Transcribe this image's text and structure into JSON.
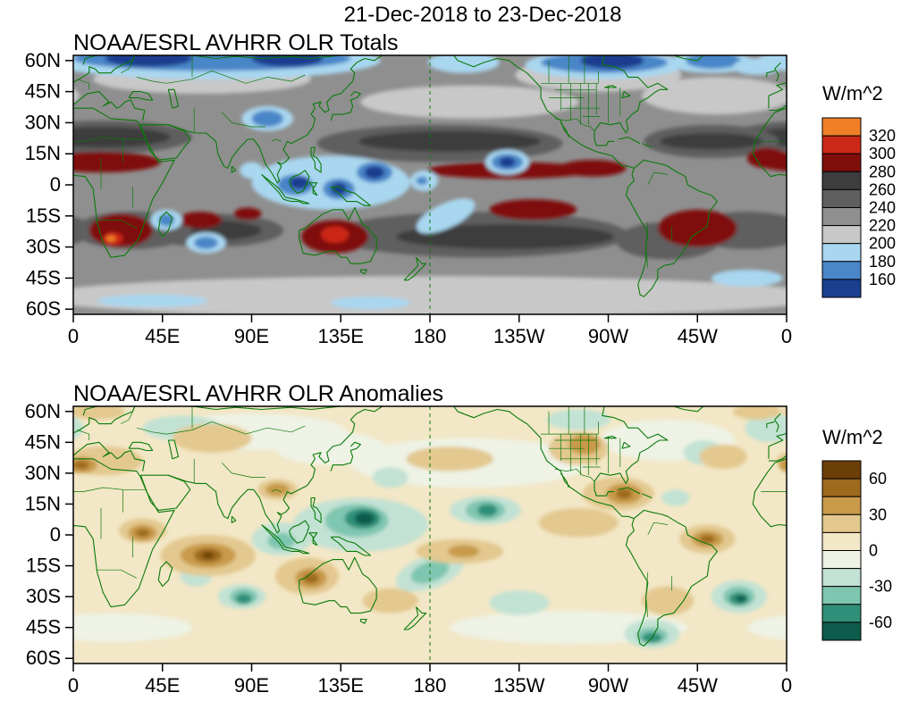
{
  "page_title": "21-Dec-2018 to 23-Dec-2018",
  "colors": {
    "coastline": "#0a7a0a",
    "frame": "#000000",
    "background": "#ffffff"
  },
  "panels": [
    {
      "title": "NOAA/ESRL AVHRR OLR Totals",
      "y_tick_labels": [
        "60N",
        "45N",
        "30N",
        "15N",
        "0",
        "15S",
        "30S",
        "45S",
        "60S"
      ],
      "x_tick_labels": [
        "0",
        "45E",
        "90E",
        "135E",
        "180",
        "135W",
        "90W",
        "45W",
        "0"
      ],
      "colorbar": {
        "units_label": "W/m^2",
        "tick_labels": [
          "320",
          "300",
          "280",
          "260",
          "240",
          "220",
          "200",
          "180",
          "160"
        ],
        "colors": [
          "#f07f28",
          "#cc2818",
          "#800f0c",
          "#3d3d3d",
          "#5e5e5e",
          "#8f8f8f",
          "#c8c8c8",
          "#a9d7f0",
          "#4a86c8",
          "#1c3e8f"
        ],
        "label_every_n_boundaries": 1
      }
    },
    {
      "title": "NOAA/ESRL AVHRR OLR Anomalies",
      "y_tick_labels": [
        "60N",
        "45N",
        "30N",
        "15N",
        "0",
        "15S",
        "30S",
        "45S",
        "60S"
      ],
      "x_tick_labels": [
        "0",
        "45E",
        "90E",
        "135E",
        "180",
        "135W",
        "90W",
        "45W",
        "0"
      ],
      "colorbar": {
        "units_label": "W/m^2",
        "tick_labels": [
          "60",
          "30",
          "0",
          "-30",
          "-60"
        ],
        "colors": [
          "#6b4008",
          "#9e6a1e",
          "#c89a4a",
          "#e3c88f",
          "#f2e7c6",
          "#eef3e6",
          "#c2e2d4",
          "#7fc6b1",
          "#2f8f78",
          "#0e5c4c"
        ],
        "label_every_n_boundaries": 2
      }
    }
  ],
  "chart_data": [
    {
      "type": "heatmap",
      "title": "NOAA/ESRL AVHRR OLR Totals",
      "period": "21-Dec-2018 to 23-Dec-2018",
      "variable": "Outgoing longwave radiation (total)",
      "units": "W/m^2",
      "projection": "Global cylindrical, longitudes 0 through 180 to 0 (Pacific-centered), latitudes 60S-60N",
      "x_ticks": [
        "0",
        "45E",
        "90E",
        "135E",
        "180",
        "135W",
        "90W",
        "45W",
        "0"
      ],
      "y_ticks": [
        "60N",
        "45N",
        "30N",
        "15N",
        "0",
        "15S",
        "30S",
        "45S",
        "60S"
      ],
      "contour_levels": [
        160,
        180,
        200,
        220,
        240,
        260,
        280,
        300,
        320
      ],
      "palette_high_to_low": [
        "#f07f28",
        "#cc2818",
        "#800f0c",
        "#3d3d3d",
        "#5e5e5e",
        "#8f8f8f",
        "#c8c8c8",
        "#a9d7f0",
        "#4a86c8",
        "#1c3e8f"
      ],
      "legend_position": "right",
      "grid": "dashed green meridian at 180",
      "features": [
        "Low OLR (<200 W/m^2, blue to dark blue) across high northern latitudes over northern Eurasia, the North Atlantic and northern North America",
        "Deep-convection minima (<180, blue/navy) over the Maritime Continent and western Pacific warm pool near Borneo, New Guinea and east of the Philippines",
        "Isolated low-OLR center near 145W 10N and a cool patch over the Tibetan Plateau",
        "High OLR (>280, dark red) along the Sahel, over southern Africa, central Australia, the east Pacific near 5-10N, and subtropical South America / South Atlantic",
        "Very light gray band (200-220) along the Southern Ocean storm track 45-60S",
        "Dark gray subtropical maxima (240-280) in both hemispheres"
      ]
    },
    {
      "type": "heatmap",
      "title": "NOAA/ESRL AVHRR OLR Anomalies",
      "period": "21-Dec-2018 to 23-Dec-2018",
      "variable": "Outgoing longwave radiation (anomaly)",
      "units": "W/m^2",
      "projection": "Global cylindrical, longitudes 0 through 180 to 0 (Pacific-centered), latitudes 60S-60N",
      "x_ticks": [
        "0",
        "45E",
        "90E",
        "135E",
        "180",
        "135W",
        "90W",
        "45W",
        "0"
      ],
      "y_ticks": [
        "60N",
        "45N",
        "30N",
        "15N",
        "0",
        "15S",
        "30S",
        "45S",
        "60S"
      ],
      "contour_levels": [
        -60,
        -45,
        -30,
        -15,
        0,
        15,
        30,
        45,
        60
      ],
      "labeled_levels": [
        60,
        30,
        0,
        -30,
        -60
      ],
      "palette_high_to_low": [
        "#6b4008",
        "#9e6a1e",
        "#c89a4a",
        "#e3c88f",
        "#f2e7c6",
        "#eef3e6",
        "#c2e2d4",
        "#7fc6b1",
        "#2f8f78",
        "#0e5c4c"
      ],
      "legend_position": "right",
      "grid": "dashed green meridian at 180",
      "features": [
        "Strong negative anomalies (enhanced convection, teal, below -60) over the western/central tropical North Pacific near 140E-160W, 5-20N",
        "Negative anomalies over the southwest Indian Ocean, the subtropical South Atlantic and southern South America",
        "Strong positive anomalies (suppressed convection, brown, above +45) over the central equatorial Indian Ocean near 55-90E, 0-20S",
        "Positive anomalies over northwestern Australia, the equatorial central/east Pacific, Mexico and the Caribbean, northeastern South America and western North America",
        "Weak anomalies (within +/-15) over most mid-latitude oceans"
      ]
    }
  ]
}
